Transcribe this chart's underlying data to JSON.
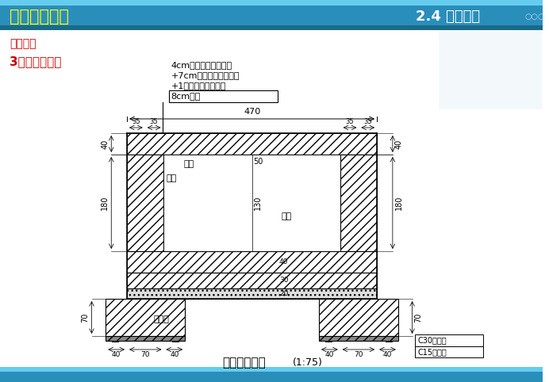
{
  "title_left": "二、技术交底",
  "title_right": "2.4 桥涵工程",
  "subtitle1": "桥涵工程",
  "subtitle2": "3、盖板涵施工",
  "bg_color": "#FFFFFF",
  "header_bg": "#2288BB",
  "header_text_color": "#FFFF00",
  "subtitle1_color": "#CC0000",
  "subtitle2_color": "#CC0000",
  "text_lines": [
    "4cm中粒式沥青混凝土",
    "+7cm粗粒式沥青混凝土",
    "+1厘米沥青表处封层",
    "8cm铺装"
  ],
  "drawing_title": "右侧洞身断面",
  "drawing_scale": "(1:75)",
  "label_c30": "C30砼基础",
  "label_c15": "C15砼垫层",
  "label_gaiaban": "盖板",
  "label_chajin": "插筋",
  "label_zhijin": "植筋",
  "label_zhijia": "支撑架",
  "dim_470": "470",
  "dim_35": "35",
  "dim_40": "40",
  "dim_70": "70",
  "dim_180": "180",
  "dim_130": "130",
  "dim_50": "50",
  "dim_30": "30",
  "dim_20": "20"
}
